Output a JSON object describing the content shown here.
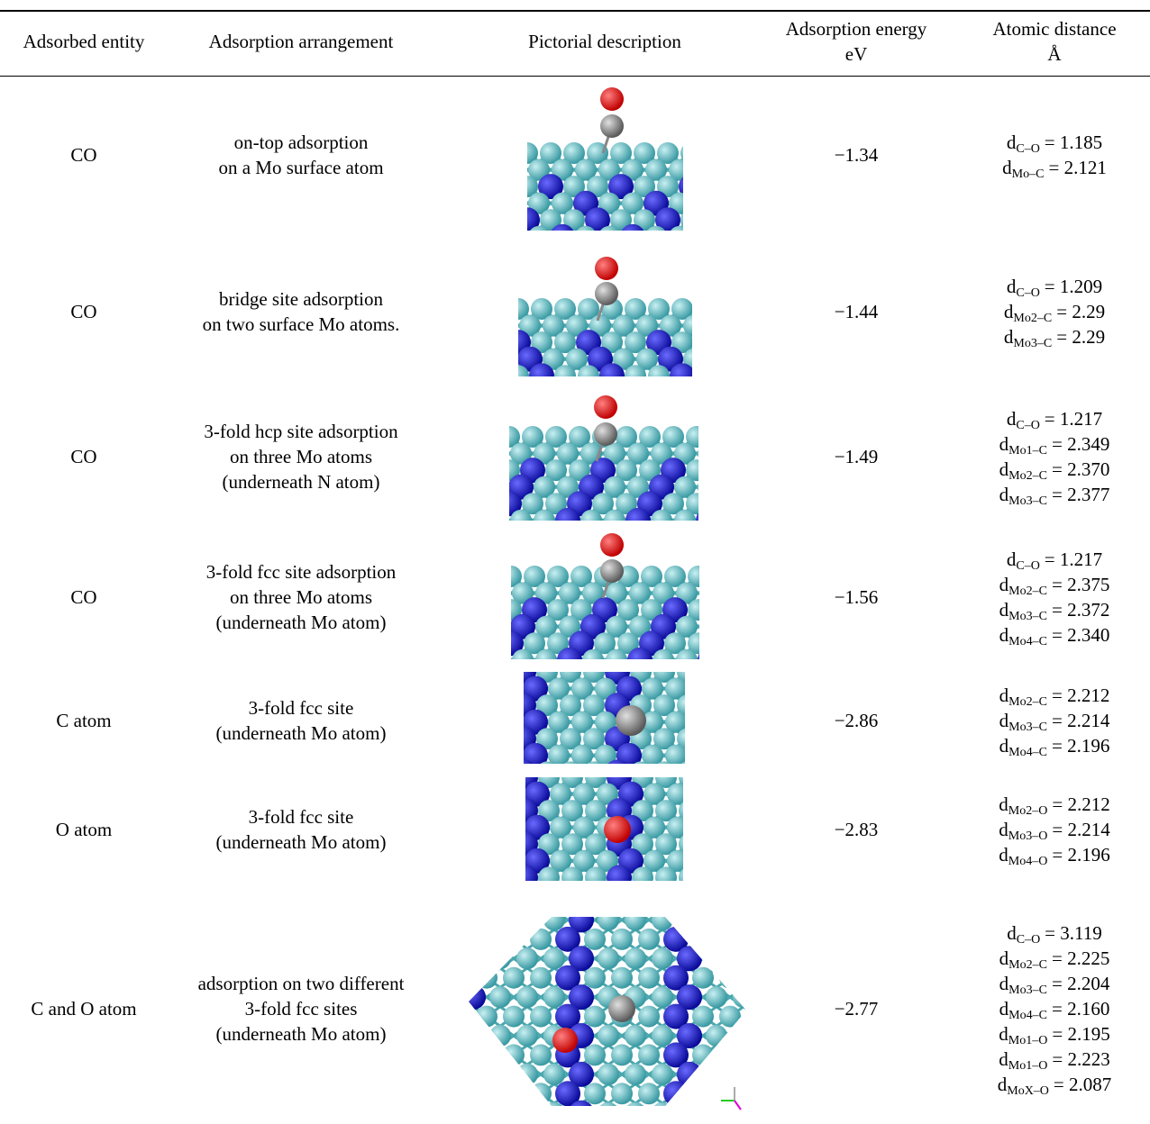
{
  "table": {
    "header": [
      [
        "Adsorbed entity"
      ],
      [
        "Adsorption arrangement"
      ],
      [
        "Pictorial description"
      ],
      [
        "Adsorption energy",
        "eV"
      ],
      [
        "Atomic distance",
        "Å"
      ]
    ],
    "rows": [
      {
        "entity": "CO",
        "arrangement": [
          "on-top adsorption",
          "on a Mo surface atom"
        ],
        "energy": "−1.34",
        "distances": [
          {
            "d": "d",
            "sub": "C–O",
            "rest": "= 1.185"
          },
          {
            "d": "d",
            "sub": "Mo–C",
            "rest": "= 2.121"
          }
        ]
      },
      {
        "entity": "CO",
        "arrangement": [
          "bridge site adsorption",
          "on two surface Mo atoms."
        ],
        "energy": "−1.44",
        "distances": [
          {
            "d": "d",
            "sub": "C–O",
            "rest": "= 1.209"
          },
          {
            "d": "d",
            "sub": "Mo2–C",
            "rest": "= 2.29"
          },
          {
            "d": "d",
            "sub": "Mo3–C",
            "rest": "= 2.29"
          }
        ]
      },
      {
        "entity": "CO",
        "arrangement": [
          "3-fold hcp site adsorption",
          "on three Mo atoms",
          "(underneath N atom)"
        ],
        "energy": "−1.49",
        "distances": [
          {
            "d": "d",
            "sub": "C–O",
            "rest": "= 1.217"
          },
          {
            "d": "d",
            "sub": "Mo1–C",
            "rest": "= 2.349"
          },
          {
            "d": "d",
            "sub": "Mo2–C",
            "rest": "= 2.370"
          },
          {
            "d": "d",
            "sub": "Mo3–C",
            "rest": "= 2.377"
          }
        ]
      },
      {
        "entity": "CO",
        "arrangement": [
          "3-fold fcc site adsorption",
          "on three Mo atoms",
          "(underneath Mo atom)"
        ],
        "energy": "−1.56",
        "distances": [
          {
            "d": "d",
            "sub": "C–O",
            "rest": "= 1.217"
          },
          {
            "d": "d",
            "sub": "Mo2–C",
            "rest": "= 2.375"
          },
          {
            "d": "d",
            "sub": "Mo3–C",
            "rest": "= 2.372"
          },
          {
            "d": "d",
            "sub": "Mo4–C",
            "rest": "= 2.340"
          }
        ]
      },
      {
        "entity": "C atom",
        "arrangement": [
          "3-fold fcc site",
          "(underneath Mo atom)"
        ],
        "energy": "−2.86",
        "distances": [
          {
            "d": "d",
            "sub": "Mo2–C",
            "rest": "= 2.212"
          },
          {
            "d": "d",
            "sub": "Mo3–C",
            "rest": "= 2.214"
          },
          {
            "d": "d",
            "sub": "Mo4–C",
            "rest": "= 2.196"
          }
        ]
      },
      {
        "entity": "O atom",
        "arrangement": [
          "3-fold fcc site",
          "(underneath Mo atom)"
        ],
        "energy": "−2.83",
        "distances": [
          {
            "d": "d",
            "sub": "Mo2–O",
            "rest": "= 2.212"
          },
          {
            "d": "d",
            "sub": "Mo3–O",
            "rest": "= 2.214"
          },
          {
            "d": "d",
            "sub": "Mo4–O",
            "rest": "= 2.196"
          }
        ]
      },
      {
        "entity": "C and O atom",
        "arrangement": [
          "adsorption on two different",
          "3-fold fcc sites",
          "(underneath Mo atom)"
        ],
        "energy": "−2.77",
        "distances": [
          {
            "d": "d",
            "sub": "C–O",
            "rest": "= 3.119"
          },
          {
            "d": "d",
            "sub": "Mo2–C",
            "rest": "= 2.225"
          },
          {
            "d": "d",
            "sub": "Mo3–C",
            "rest": "= 2.204"
          },
          {
            "d": "d",
            "sub": "Mo4–C",
            "rest": "= 2.160"
          },
          {
            "d": "d",
            "sub": "Mo1–O",
            "rest": "= 2.195"
          },
          {
            "d": "d",
            "sub": "Mo1–O",
            "rest": "= 2.223"
          },
          {
            "d": "d",
            "sub": "MoX–O",
            "rest": "= 2.087"
          }
        ]
      }
    ]
  }
}
